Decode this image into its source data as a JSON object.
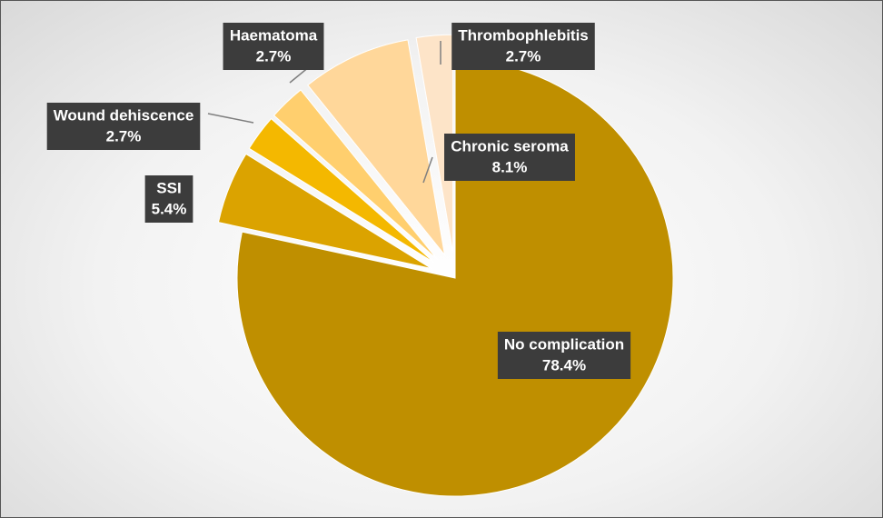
{
  "chart_data": {
    "type": "pie",
    "categories": [
      "No complication",
      "SSI",
      "Wound dehiscence",
      "Haematoma",
      "Chronic seroma",
      "Thrombophlebitis"
    ],
    "values": [
      78.4,
      5.4,
      2.7,
      2.7,
      8.1,
      2.7
    ],
    "value_labels": [
      "78.4%",
      "5.4%",
      "2.7%",
      "2.7%",
      "8.1%",
      "2.7%"
    ],
    "colors": [
      "#bf8f00",
      "#dba300",
      "#f4b800",
      "#ffcf6e",
      "#ffd79a",
      "#fde4c8"
    ]
  }
}
